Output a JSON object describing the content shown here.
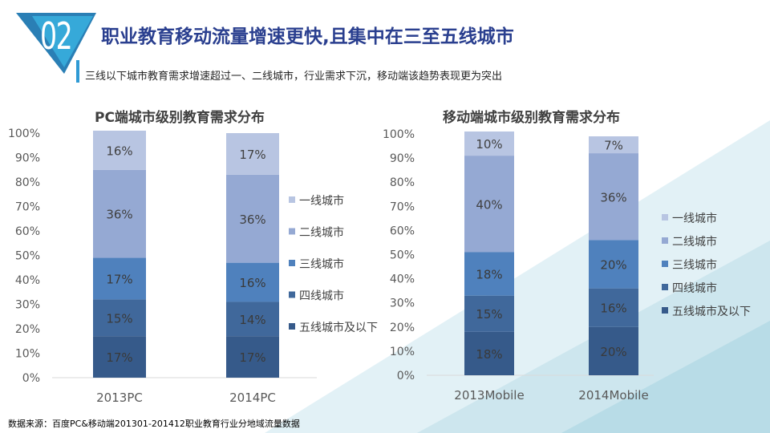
{
  "header": {
    "badge_number": "02",
    "title": "职业教育移动流量增速更快,且集中在三至五线城市",
    "subtitle": "三线以下城市教育需求增速超过一、二线城市，行业需求下沉，移动端该趋势表现更为突出"
  },
  "source_note": "数据来源：百度PC&移动端201301-201412职业教育行业分地域流量数据",
  "colors": {
    "title": "#2a3f8f",
    "accent": "#2f9ad4",
    "tier1": "#b8c5e2",
    "tier2": "#95a9d3",
    "tier3": "#4f81bd",
    "tier4": "#40689b",
    "tier5": "#365a8a"
  },
  "chart_data": [
    {
      "type": "bar",
      "stacked": true,
      "title": "PC端城市级别教育需求分布",
      "categories": [
        "2013PC",
        "2014PC"
      ],
      "ylim": [
        0,
        100
      ],
      "yticks": [
        "0%",
        "10%",
        "20%",
        "30%",
        "40%",
        "50%",
        "60%",
        "70%",
        "80%",
        "90%",
        "100%"
      ],
      "legend_position": "right",
      "series": [
        {
          "name": "五线城市及以下",
          "values": [
            17,
            17
          ],
          "labels": [
            "17%",
            "17%"
          ],
          "color": "#365a8a"
        },
        {
          "name": "四线城市",
          "values": [
            15,
            14
          ],
          "labels": [
            "15%",
            "14%"
          ],
          "color": "#40689b"
        },
        {
          "name": "三线城市",
          "values": [
            17,
            16
          ],
          "labels": [
            "17%",
            "16%"
          ],
          "color": "#4f81bd"
        },
        {
          "name": "二线城市",
          "values": [
            36,
            36
          ],
          "labels": [
            "36%",
            "36%"
          ],
          "color": "#95a9d3"
        },
        {
          "name": "一线城市",
          "values": [
            16,
            17
          ],
          "labels": [
            "16%",
            "17%"
          ],
          "color": "#b8c5e2"
        }
      ]
    },
    {
      "type": "bar",
      "stacked": true,
      "title": "移动端城市级别教育需求分布",
      "categories": [
        "2013Mobile",
        "2014Mobile"
      ],
      "ylim": [
        0,
        100
      ],
      "yticks": [
        "0%",
        "10%",
        "20%",
        "30%",
        "40%",
        "50%",
        "60%",
        "70%",
        "80%",
        "90%",
        "100%"
      ],
      "legend_position": "right",
      "series": [
        {
          "name": "五线城市及以下",
          "values": [
            18,
            20
          ],
          "labels": [
            "18%",
            "20%"
          ],
          "color": "#365a8a"
        },
        {
          "name": "四线城市",
          "values": [
            15,
            16
          ],
          "labels": [
            "15%",
            "16%"
          ],
          "color": "#40689b"
        },
        {
          "name": "三线城市",
          "values": [
            18,
            20
          ],
          "labels": [
            "18%",
            "20%"
          ],
          "color": "#4f81bd"
        },
        {
          "name": "二线城市",
          "values": [
            40,
            36
          ],
          "labels": [
            "40%",
            "36%"
          ],
          "color": "#95a9d3"
        },
        {
          "name": "一线城市",
          "values": [
            10,
            7
          ],
          "labels": [
            "10%",
            "7%"
          ],
          "color": "#b8c5e2"
        }
      ]
    }
  ]
}
